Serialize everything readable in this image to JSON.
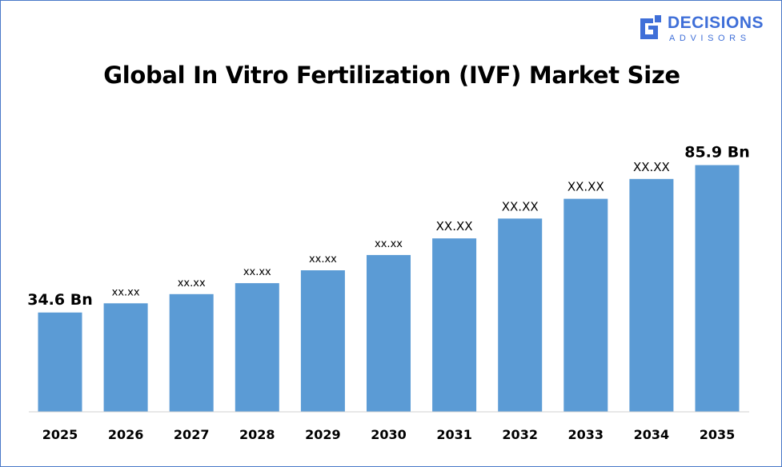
{
  "brand": {
    "name_line1": "DECISIONS",
    "name_line2": "ADVISORS",
    "color": "#3f6fd8"
  },
  "chart_data": {
    "type": "bar",
    "title": "Global In Vitro Fertilization (IVF) Market Size",
    "categories": [
      "2025",
      "2026",
      "2027",
      "2028",
      "2029",
      "2030",
      "2031",
      "2032",
      "2033",
      "2034",
      "2035"
    ],
    "values": [
      34.6,
      37.8,
      41.0,
      44.8,
      49.3,
      54.6,
      60.4,
      67.3,
      74.2,
      81.1,
      85.9
    ],
    "data_labels": [
      "34.6 Bn",
      "xx.xx",
      "xx.xx",
      "xx.xx",
      "xx.xx",
      "xx.xx",
      "XX.XX",
      "XX.XX",
      "XX.XX",
      "XX.XX",
      "85.9 Bn"
    ],
    "xlabel": "",
    "ylabel": "",
    "ylim": [
      0,
      110
    ],
    "grid": false,
    "legend": "none",
    "bar_color": "#5b9bd5"
  }
}
